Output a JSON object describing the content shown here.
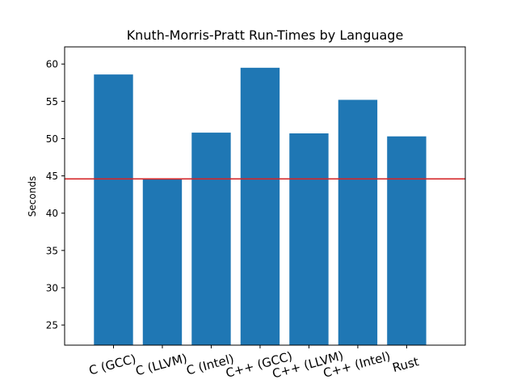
{
  "chart_data": {
    "type": "bar",
    "title": "Knuth-Morris-Pratt Run-Times by Language",
    "xlabel": "",
    "ylabel": "Seconds",
    "categories": [
      "C (GCC)",
      "C (LLVM)",
      "C (Intel)",
      "C++ (GCC)",
      "C++ (LLVM)",
      "C++ (Intel)",
      "Rust"
    ],
    "values": [
      58.6,
      44.6,
      50.8,
      59.5,
      50.7,
      55.2,
      50.3
    ],
    "ylim": [
      22.3,
      62.3
    ],
    "yticks": [
      25,
      30,
      35,
      40,
      45,
      50,
      55,
      60
    ],
    "reference_line": {
      "y": 44.6,
      "color": "#d62728"
    },
    "bar_color": "#1f77b4",
    "grid": false
  }
}
